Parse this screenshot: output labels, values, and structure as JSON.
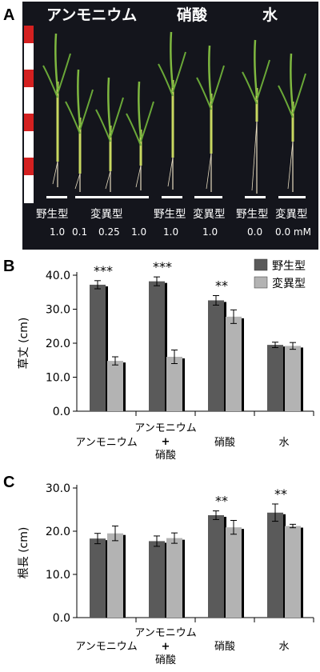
{
  "panels": {
    "a": "A",
    "b": "B",
    "c": "C"
  },
  "photo": {
    "conditions": [
      "アンモニウム",
      "硝酸",
      "水"
    ],
    "groups": [
      "野生型",
      "変異型",
      "野生型",
      "変異型",
      "野生型",
      "変異型"
    ],
    "concentrations": [
      "1.0",
      "0.1",
      "0.25",
      "1.0",
      "1.0",
      "1.0",
      "0.0",
      "0.0 mM"
    ]
  },
  "legend": {
    "wild": "野生型",
    "mutant": "変異型"
  },
  "colors": {
    "wild": "#5a5a5a",
    "mutant": "#b3b3b3",
    "photo_bg": "#14151c",
    "ruler_red": "#d42020"
  },
  "chart_data": [
    {
      "type": "bar",
      "ylabel": "草丈 (cm)",
      "ylim": [
        0,
        40
      ],
      "yticks": [
        "0.0",
        "10.0",
        "20.0",
        "30.0",
        "40.0"
      ],
      "categories": [
        {
          "lines": [
            "アンモニウム"
          ]
        },
        {
          "lines": [
            "アンモニウム",
            "+",
            "硝酸"
          ]
        },
        {
          "lines": [
            "硝酸"
          ]
        },
        {
          "lines": [
            "水"
          ]
        }
      ],
      "series": [
        {
          "name": "野生型",
          "values": [
            37.2,
            38.2,
            32.6,
            19.5
          ],
          "errors": [
            1.2,
            1.3,
            1.4,
            0.8
          ]
        },
        {
          "name": "変異型",
          "values": [
            14.8,
            16.0,
            27.8,
            19.2
          ],
          "errors": [
            1.2,
            2.0,
            2.0,
            1.0
          ]
        }
      ],
      "significance": [
        "***",
        "***",
        "**",
        ""
      ]
    },
    {
      "type": "bar",
      "ylabel": "根長 (cm)",
      "ylim": [
        0,
        30
      ],
      "yticks": [
        "0.0",
        "10.0",
        "20.0",
        "30.0"
      ],
      "categories": [
        {
          "lines": [
            "アンモニウム"
          ]
        },
        {
          "lines": [
            "アンモニウム",
            "+",
            "硝酸"
          ]
        },
        {
          "lines": [
            "硝酸"
          ]
        },
        {
          "lines": [
            "水"
          ]
        }
      ],
      "series": [
        {
          "name": "野生型",
          "values": [
            18.3,
            17.7,
            23.7,
            24.3
          ],
          "errors": [
            1.2,
            1.2,
            1.0,
            2.0
          ]
        },
        {
          "name": "変異型",
          "values": [
            19.5,
            18.4,
            20.9,
            21.2
          ],
          "errors": [
            1.7,
            1.2,
            1.6,
            0.4
          ]
        }
      ],
      "significance": [
        "",
        "",
        "**",
        "**"
      ]
    }
  ]
}
